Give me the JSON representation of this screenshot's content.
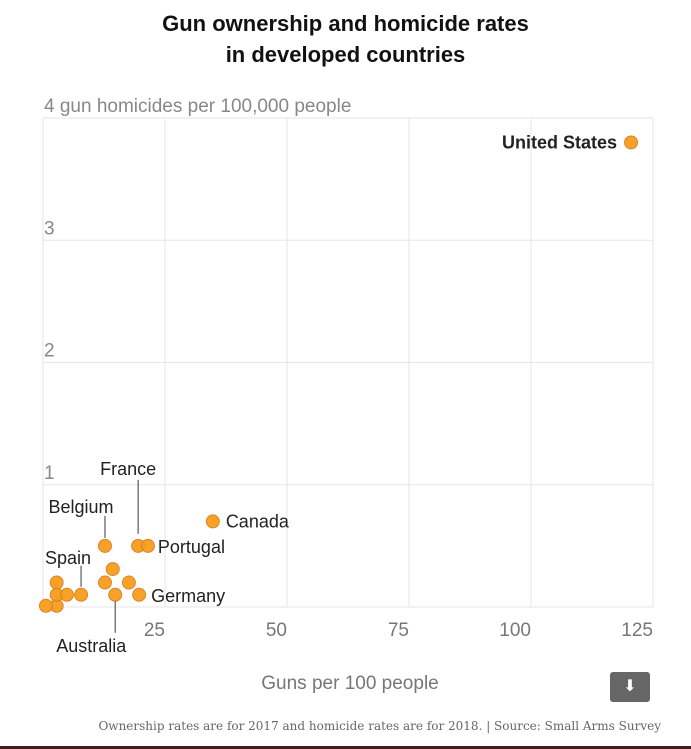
{
  "chart_data": {
    "type": "scatter",
    "title": "Gun ownership and homicide rates in developed countries",
    "title_lines": [
      "Gun ownership and homicide rates",
      "in developed countries"
    ],
    "xlabel": "Guns per 100 people",
    "ylabel": "gun homicides per 100,000 people",
    "xlim": [
      0,
      125
    ],
    "ylim": [
      0,
      4
    ],
    "x_ticks": [
      25,
      50,
      75,
      100,
      125
    ],
    "y_ticks": [
      1,
      2,
      3,
      4
    ],
    "y_tick_labels": [
      "1",
      "2",
      "3",
      "4 gun homicides per 100,000 people"
    ],
    "grid": true,
    "point_color": "#F79C1E",
    "points": [
      {
        "label": "United States",
        "x": 120.5,
        "y": 3.8
      },
      {
        "label": "Canada",
        "x": 34.8,
        "y": 0.7
      },
      {
        "label": "Portugal",
        "x": 21.5,
        "y": 0.5
      },
      {
        "label": "France",
        "x": 19.5,
        "y": 0.5
      },
      {
        "label": "Belgium",
        "x": 12.7,
        "y": 0.5
      },
      {
        "label": "Germany",
        "x": 19.7,
        "y": 0.1
      },
      {
        "label": "Australia",
        "x": 14.8,
        "y": 0.1
      },
      {
        "label": "Spain",
        "x": 7.8,
        "y": 0.1
      },
      {
        "label": "",
        "x": 14.3,
        "y": 0.31
      },
      {
        "label": "",
        "x": 12.7,
        "y": 0.2
      },
      {
        "label": "",
        "x": 17.6,
        "y": 0.2
      },
      {
        "label": "",
        "x": 4.9,
        "y": 0.1
      },
      {
        "label": "",
        "x": 2.8,
        "y": 0.1
      },
      {
        "label": "",
        "x": 2.8,
        "y": 0.2
      },
      {
        "label": "",
        "x": 0.6,
        "y": 0.01
      },
      {
        "label": "",
        "x": 2.8,
        "y": 0.01
      }
    ]
  },
  "download_icon": "download-arrow-icon",
  "note": "Ownership rates are for 2017 and homicide rates are for 2018. | Source: Small Arms Survey"
}
